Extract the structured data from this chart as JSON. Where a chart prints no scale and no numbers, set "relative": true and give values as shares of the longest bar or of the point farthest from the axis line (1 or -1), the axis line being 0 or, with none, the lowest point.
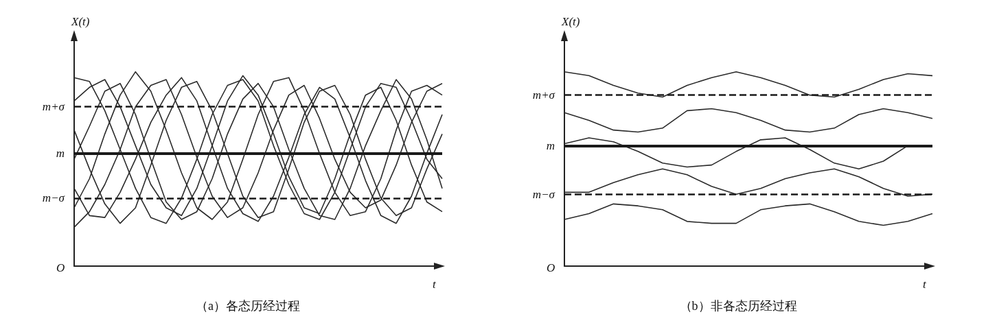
{
  "chart_data": [
    {
      "type": "line",
      "title": "（a）各态历经过程",
      "xlabel": "t",
      "ylabel": "X(t)",
      "relative": true,
      "annotations": [
        "O"
      ],
      "categories": [
        null,
        null,
        null,
        null,
        null,
        null,
        null,
        null,
        null,
        null,
        null,
        null,
        null,
        null,
        null,
        null,
        null,
        null,
        null,
        null,
        null,
        null,
        null,
        null,
        null
      ],
      "ref_lines": [
        {
          "axis": "y",
          "value": 0.82,
          "label": "m+σ",
          "line_style": "dashed",
          "color": "#1a1a1a"
        },
        {
          "axis": "y",
          "value": 0.58,
          "label": "m",
          "line_style": "solid",
          "color": "#1a1a1a"
        },
        {
          "axis": "y",
          "value": 0.35,
          "label": "m−σ",
          "line_style": "dashed",
          "color": "#1a1a1a"
        }
      ],
      "series": [
        {
          "color": "#2b2b2b",
          "values": [
            0.97,
            0.95,
            0.8,
            0.6,
            0.4,
            0.25,
            0.22,
            0.35,
            0.55,
            0.78,
            0.93,
            0.96,
            0.85,
            0.62,
            0.42,
            0.27,
            0.24,
            0.38,
            0.6,
            0.82,
            0.94,
            0.92,
            0.75,
            0.55,
            0.45
          ]
        },
        {
          "color": "#2b2b2b",
          "values": [
            0.3,
            0.45,
            0.68,
            0.88,
            1.0,
            0.9,
            0.7,
            0.48,
            0.3,
            0.24,
            0.33,
            0.55,
            0.78,
            0.95,
            0.97,
            0.8,
            0.58,
            0.38,
            0.26,
            0.28,
            0.45,
            0.7,
            0.9,
            0.93,
            0.88
          ]
        },
        {
          "color": "#2b2b2b",
          "values": [
            0.7,
            0.5,
            0.32,
            0.22,
            0.3,
            0.52,
            0.75,
            0.92,
            0.95,
            0.8,
            0.58,
            0.36,
            0.25,
            0.28,
            0.5,
            0.74,
            0.9,
            0.93,
            0.78,
            0.55,
            0.35,
            0.26,
            0.3,
            0.5,
            0.68
          ]
        },
        {
          "color": "#2b2b2b",
          "values": [
            0.85,
            0.92,
            0.96,
            0.82,
            0.62,
            0.42,
            0.3,
            0.26,
            0.4,
            0.62,
            0.85,
            0.98,
            0.88,
            0.68,
            0.46,
            0.3,
            0.27,
            0.45,
            0.68,
            0.88,
            0.92,
            0.75,
            0.52,
            0.33,
            0.28
          ]
        },
        {
          "color": "#2b2b2b",
          "values": [
            0.2,
            0.28,
            0.42,
            0.6,
            0.82,
            0.93,
            0.96,
            0.78,
            0.56,
            0.36,
            0.25,
            0.3,
            0.48,
            0.7,
            0.88,
            0.93,
            0.76,
            0.55,
            0.38,
            0.3,
            0.34,
            0.52,
            0.74,
            0.9,
            0.94
          ]
        },
        {
          "color": "#2b2b2b",
          "values": [
            0.55,
            0.72,
            0.9,
            0.94,
            0.78,
            0.55,
            0.33,
            0.24,
            0.28,
            0.45,
            0.68,
            0.86,
            0.94,
            0.82,
            0.6,
            0.4,
            0.26,
            0.24,
            0.4,
            0.62,
            0.8,
            0.96,
            0.86,
            0.65,
            0.4
          ]
        },
        {
          "color": "#2b2b2b",
          "values": [
            0.4,
            0.26,
            0.25,
            0.38,
            0.55,
            0.74,
            0.88,
            0.97,
            0.85,
            0.62,
            0.4,
            0.27,
            0.23,
            0.36,
            0.56,
            0.78,
            0.92,
            0.86,
            0.66,
            0.44,
            0.26,
            0.22,
            0.36,
            0.58,
            0.78
          ]
        }
      ]
    },
    {
      "type": "line",
      "title": "（b）非各态历经过程",
      "xlabel": "t",
      "ylabel": "X(t)",
      "relative": true,
      "annotations": [
        "O"
      ],
      "categories": [
        null,
        null,
        null,
        null,
        null,
        null,
        null,
        null,
        null,
        null,
        null,
        null,
        null,
        null,
        null,
        null
      ],
      "ref_lines": [
        {
          "axis": "y",
          "value": 0.88,
          "label": "m+σ",
          "line_style": "dashed",
          "color": "#1a1a1a"
        },
        {
          "axis": "y",
          "value": 0.62,
          "label": "m",
          "line_style": "solid",
          "color": "#1a1a1a"
        },
        {
          "axis": "y",
          "value": 0.37,
          "label": "m−σ",
          "line_style": "dashed",
          "color": "#1a1a1a"
        }
      ],
      "series": [
        {
          "color": "#2b2b2b",
          "values": [
            1.0,
            0.98,
            0.93,
            0.89,
            0.87,
            0.93,
            0.97,
            1.0,
            0.97,
            0.93,
            0.88,
            0.87,
            0.91,
            0.96,
            0.99,
            0.98
          ]
        },
        {
          "color": "#2b2b2b",
          "values": [
            0.79,
            0.75,
            0.7,
            0.69,
            0.71,
            0.8,
            0.81,
            0.79,
            0.75,
            0.7,
            0.69,
            0.71,
            0.78,
            0.81,
            0.79,
            0.76
          ]
        },
        {
          "color": "#2b2b2b",
          "values": [
            0.63,
            0.66,
            0.64,
            0.59,
            0.53,
            0.51,
            0.52,
            0.59,
            0.65,
            0.66,
            0.6,
            0.53,
            0.5,
            0.54,
            0.62,
            0.62
          ]
        },
        {
          "color": "#2b2b2b",
          "values": [
            0.38,
            0.38,
            0.43,
            0.47,
            0.5,
            0.47,
            0.41,
            0.37,
            0.4,
            0.45,
            0.48,
            0.5,
            0.46,
            0.4,
            0.36,
            0.37
          ]
        },
        {
          "color": "#2b2b2b",
          "values": [
            0.24,
            0.27,
            0.32,
            0.31,
            0.29,
            0.23,
            0.22,
            0.22,
            0.29,
            0.31,
            0.32,
            0.28,
            0.23,
            0.21,
            0.23,
            0.27
          ]
        }
      ]
    }
  ]
}
